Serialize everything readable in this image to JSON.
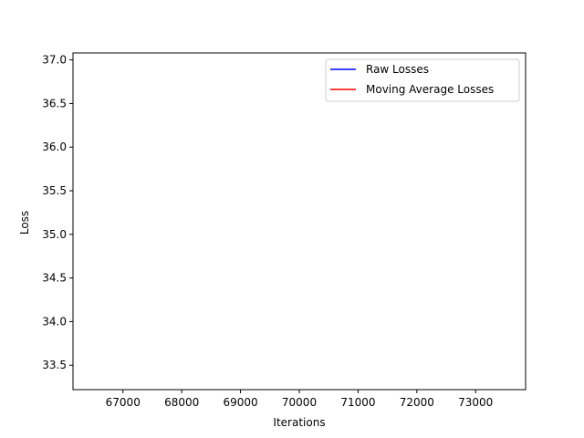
{
  "chart_data": {
    "type": "line",
    "title": "",
    "xlabel": "Iterations",
    "ylabel": "Loss",
    "xlim": [
      66150,
      73850
    ],
    "ylim": [
      33.22,
      37.08
    ],
    "xticks": [
      67000,
      68000,
      69000,
      70000,
      71000,
      72000,
      73000
    ],
    "xtick_labels": [
      "67000",
      "68000",
      "69000",
      "70000",
      "71000",
      "72000",
      "73000"
    ],
    "yticks": [
      33.5,
      34.0,
      34.5,
      35.0,
      35.5,
      36.0,
      36.5,
      37.0
    ],
    "ytick_labels": [
      "33.5",
      "34.0",
      "34.5",
      "35.0",
      "35.5",
      "36.0",
      "36.5",
      "37.0"
    ],
    "grid": false,
    "legend_position": "top-right",
    "series": [
      {
        "name": "Raw Losses",
        "color": "#0000ff",
        "x": [],
        "y": []
      },
      {
        "name": "Moving Average Losses",
        "color": "#ff0000",
        "x": [],
        "y": []
      }
    ]
  }
}
